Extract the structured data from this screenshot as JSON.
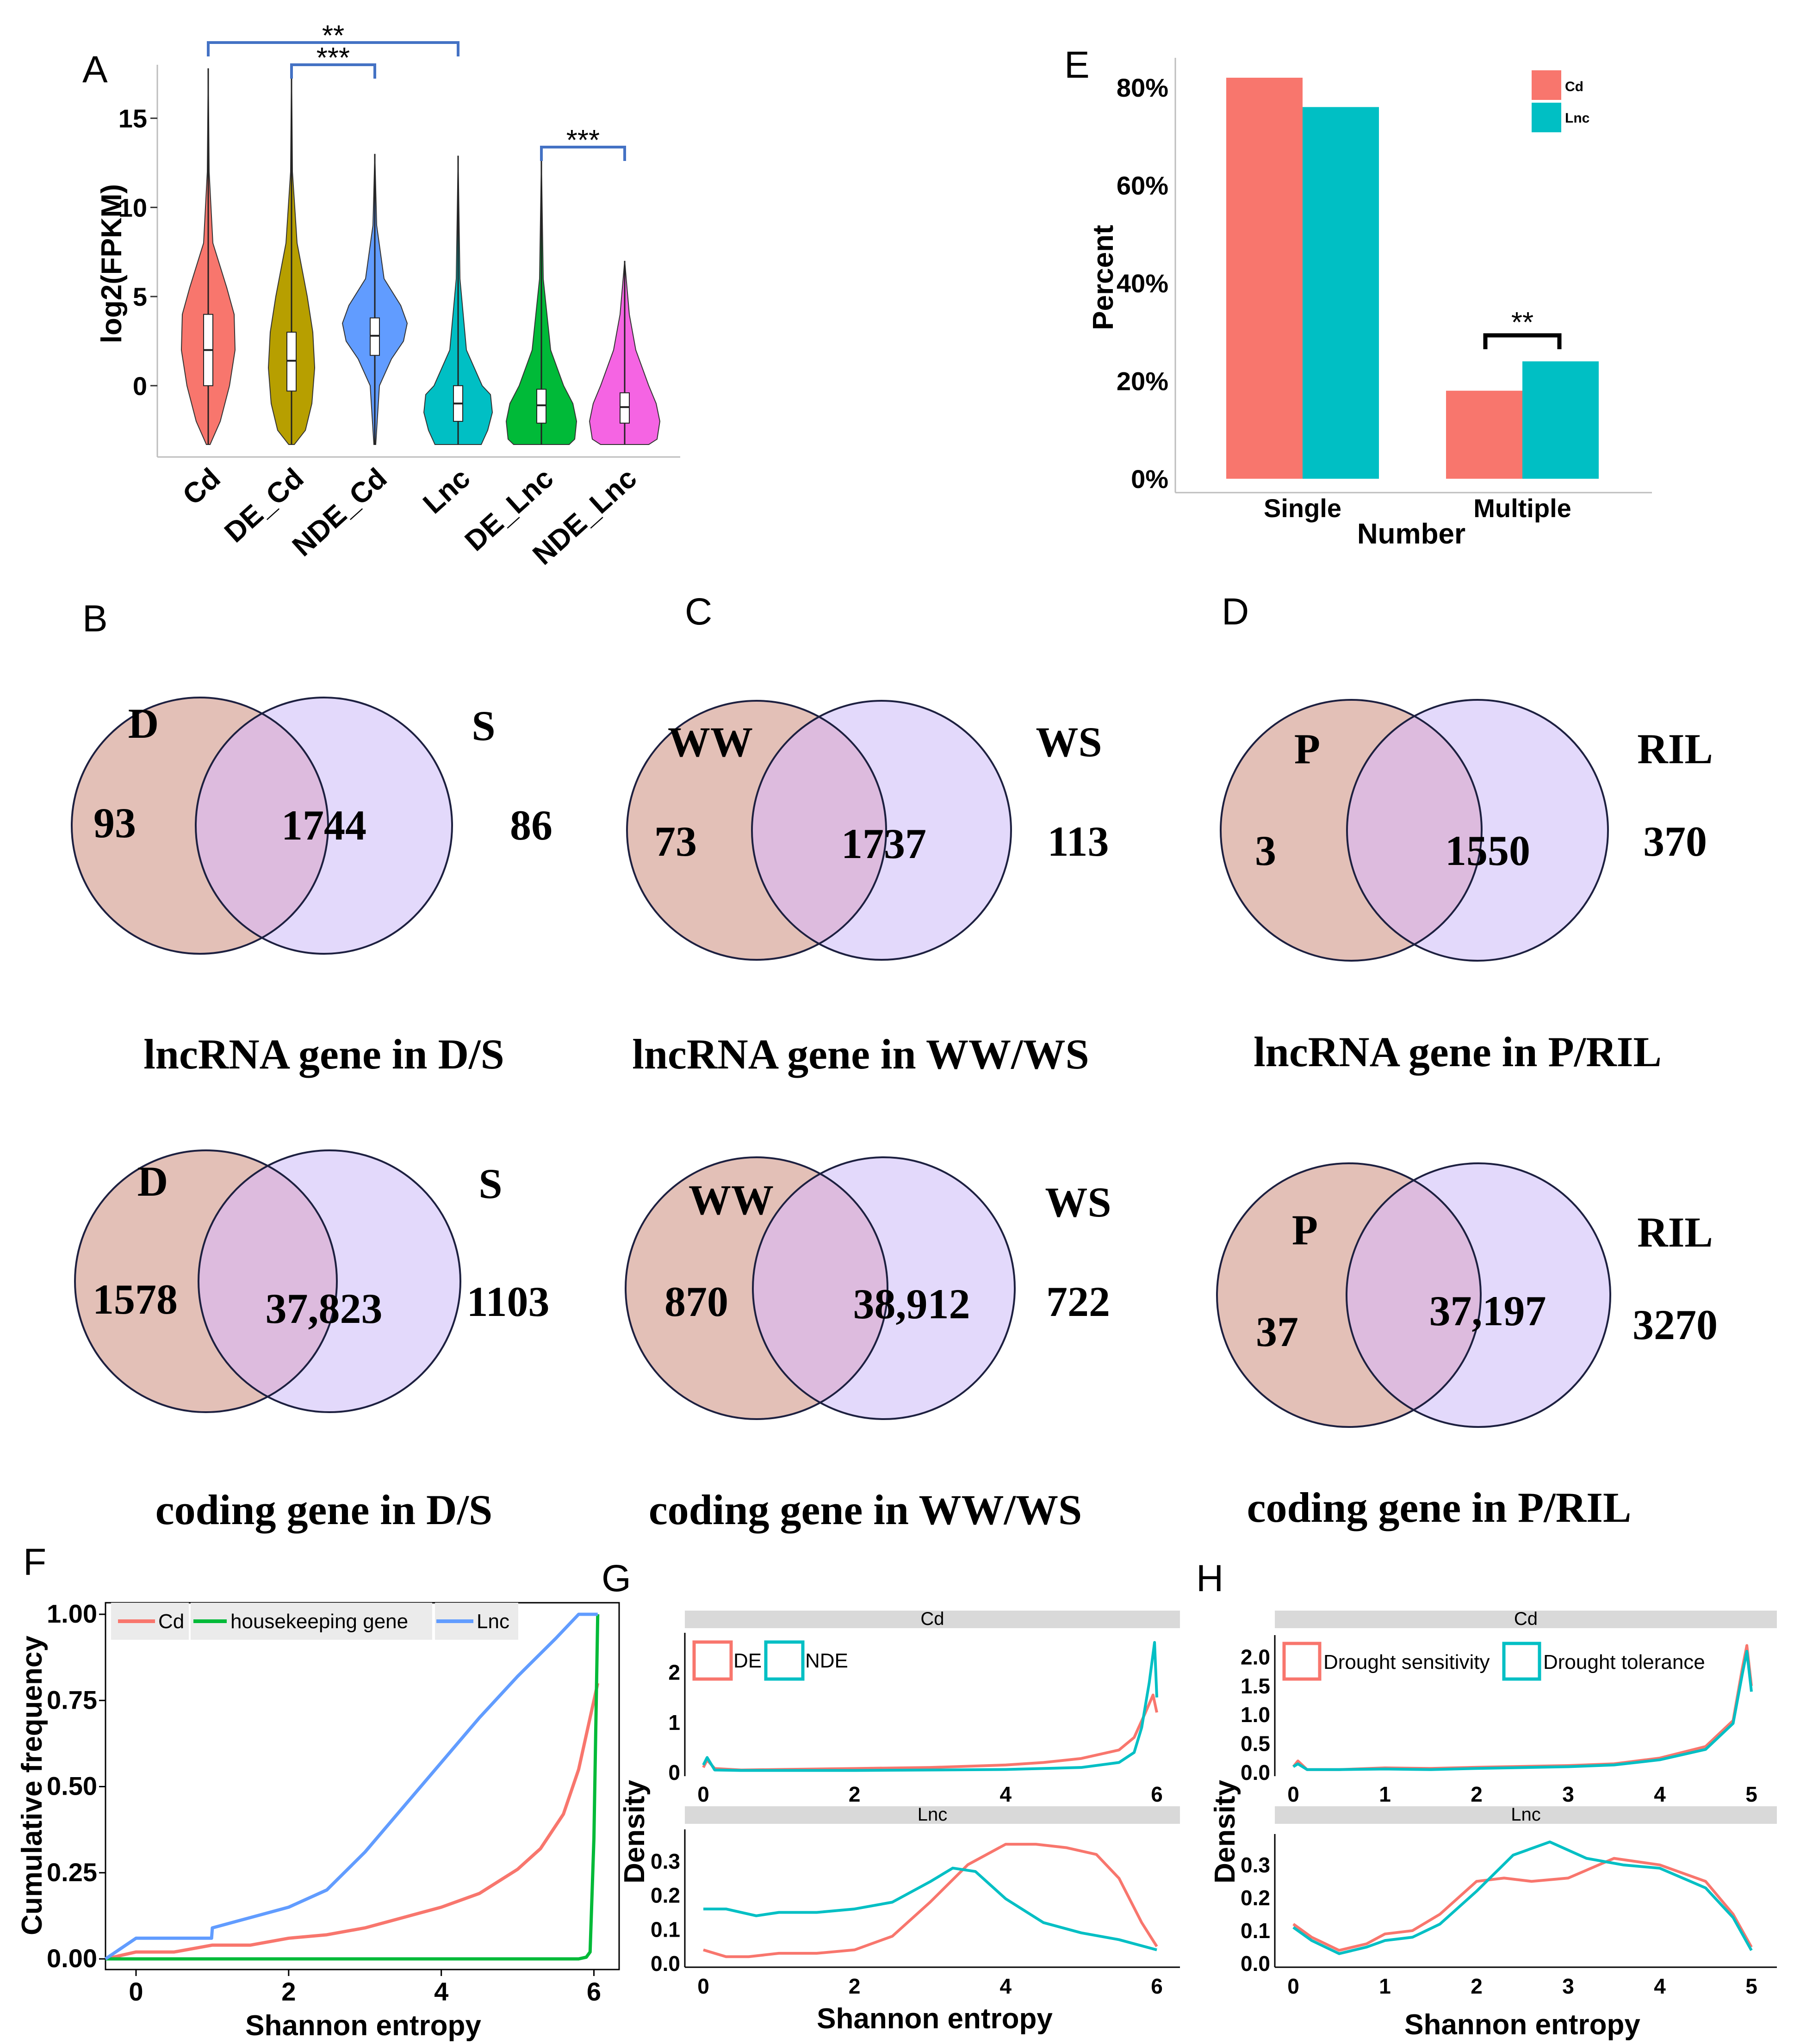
{
  "colors": {
    "red": "#F8766D",
    "olive": "#B79F00",
    "blue": "#619CFF",
    "cyan": "#00BFC4",
    "green": "#00BA38",
    "magenta": "#F564E3",
    "venn_left": "#E3C0B7",
    "venn_right": "#E3D9FB",
    "venn_mid": "#DDBBDE",
    "bracket": "#4472C4"
  },
  "panels": {
    "A": {
      "label": "A",
      "chart_data": {
        "type": "violin",
        "ylabel": "log2(FPKM)",
        "ylim": [
          -4,
          18
        ],
        "yticks": [
          "15",
          "10",
          "5",
          "0"
        ],
        "yticks_values": [
          15,
          10,
          5,
          0
        ],
        "categories": [
          "Cd",
          "DE_Cd",
          "NDE_Cd",
          "Lnc",
          "DE_Lnc",
          "NDE_Lnc"
        ],
        "medians": [
          2,
          1.4,
          2.8,
          -1,
          -1.1,
          -1.2
        ],
        "q1": [
          0,
          -0.3,
          1.7,
          -2,
          -2.1,
          -2.1
        ],
        "q3": [
          4,
          3,
          3.8,
          0,
          -0.2,
          -0.4
        ],
        "mins": [
          -3.3,
          -3.3,
          -3.3,
          -3.3,
          -3.3,
          -3.3
        ],
        "maxs": [
          17.8,
          18,
          13,
          12.9,
          12.7,
          7
        ],
        "significance": [
          {
            "from": "Cd",
            "to": "Lnc",
            "label": "**"
          },
          {
            "from": "DE_Cd",
            "to": "NDE_Cd",
            "label": "***"
          },
          {
            "from": "DE_Lnc",
            "to": "NDE_Lnc",
            "label": "***"
          }
        ]
      }
    },
    "E": {
      "label": "E",
      "chart_data": {
        "type": "bar",
        "xlabel": "Number",
        "ylabel": "Percent",
        "categories": [
          "Single",
          "Multiple"
        ],
        "series": [
          {
            "name": "Cd",
            "values": [
              82,
              18
            ]
          },
          {
            "name": "Lnc",
            "values": [
              76,
              24
            ]
          }
        ],
        "ylim": [
          0,
          82
        ],
        "yticks": [
          "0%",
          "20%",
          "40%",
          "60%",
          "80%"
        ],
        "yticks_values": [
          0,
          20,
          40,
          60,
          80
        ],
        "significance": [
          {
            "category": "Multiple",
            "label": "**"
          }
        ]
      }
    },
    "B": {
      "label": "B",
      "left_name": "D",
      "right_name": "S",
      "rows": [
        {
          "left": "93",
          "mid": "1744",
          "right": "86",
          "title": "lncRNA gene in D/S"
        },
        {
          "left": "1578",
          "mid": "37,823",
          "right": "1103",
          "title": "coding gene in D/S"
        }
      ]
    },
    "C": {
      "label": "C",
      "left_name": "WW",
      "right_name": "WS",
      "rows": [
        {
          "left": "73",
          "mid": "1737",
          "right": "113",
          "title": "lncRNA gene in WW/WS"
        },
        {
          "left": "870",
          "mid": "38,912",
          "right": "722",
          "title": "coding gene in WW/WS"
        }
      ]
    },
    "D": {
      "label": "D",
      "left_name": "P",
      "right_name": "RIL",
      "rows": [
        {
          "left": "3",
          "mid": "1550",
          "right": "370",
          "title": "lncRNA gene in P/RIL"
        },
        {
          "left": "37",
          "mid": "37,197",
          "right": "3270",
          "title": "coding gene in P/RIL"
        }
      ]
    },
    "F": {
      "label": "F",
      "chart_data": {
        "type": "line",
        "xlabel": "Shannon entropy",
        "ylabel": "Cumulative frequency",
        "xlim": [
          -0.4,
          6.1
        ],
        "ylim": [
          -0.02,
          1.02
        ],
        "xticks": [
          "0",
          "2",
          "4",
          "6"
        ],
        "xticks_values": [
          0,
          2,
          4,
          6
        ],
        "yticks": [
          "0.00",
          "0.25",
          "0.50",
          "0.75",
          "1.00"
        ],
        "yticks_values": [
          0,
          0.25,
          0.5,
          0.75,
          1
        ],
        "legend": [
          "Cd",
          "housekeeping gene",
          "Lnc"
        ],
        "series": [
          {
            "name": "Cd",
            "x": [
              -0.4,
              0,
              0.5,
              1,
              1.5,
              2,
              2.5,
              3,
              3.5,
              4,
              4.5,
              5,
              5.3,
              5.6,
              5.8,
              5.95,
              6.05
            ],
            "y": [
              0,
              0.02,
              0.02,
              0.04,
              0.04,
              0.06,
              0.07,
              0.09,
              0.12,
              0.15,
              0.19,
              0.26,
              0.32,
              0.42,
              0.55,
              0.7,
              0.8
            ]
          },
          {
            "name": "housekeeping gene",
            "x": [
              -0.4,
              5.8,
              5.9,
              5.95,
              6.0,
              6.05
            ],
            "y": [
              0,
              0.0,
              0.005,
              0.02,
              0.35,
              1.0
            ]
          },
          {
            "name": "Lnc",
            "x": [
              -0.4,
              0,
              0.5,
              0.99,
              1.0,
              1.5,
              2,
              2.5,
              3,
              3.5,
              4,
              4.5,
              5,
              5.5,
              5.8,
              6.05
            ],
            "y": [
              0,
              0.06,
              0.06,
              0.06,
              0.09,
              0.12,
              0.15,
              0.2,
              0.31,
              0.44,
              0.57,
              0.7,
              0.82,
              0.93,
              1.0,
              1.0
            ]
          }
        ]
      }
    },
    "G": {
      "label": "G",
      "chart_data": {
        "type": "density",
        "xlabel": "Shannon entropy",
        "ylabel": "Density",
        "legend": [
          "DE",
          "NDE"
        ],
        "xlim": [
          0,
          6
        ],
        "xticks": [
          "0",
          "2",
          "4",
          "6"
        ],
        "xticks_values": [
          0,
          2,
          4,
          6
        ],
        "facets": [
          {
            "name": "Cd",
            "ylim": [
              0,
              2.7
            ],
            "yticks": [
              "0",
              "1",
              "2"
            ],
            "yticks_values": [
              0,
              1,
              2
            ],
            "series": [
              {
                "name": "DE",
                "x": [
                  0,
                  0.05,
                  0.15,
                  0.5,
                  1,
                  2,
                  3,
                  4,
                  4.5,
                  5,
                  5.5,
                  5.7,
                  5.85,
                  5.95,
                  6
                ],
                "y": [
                  0.1,
                  0.25,
                  0.08,
                  0.05,
                  0.06,
                  0.08,
                  0.1,
                  0.15,
                  0.2,
                  0.28,
                  0.45,
                  0.7,
                  1.2,
                  1.55,
                  1.2
                ]
              },
              {
                "name": "NDE",
                "x": [
                  0,
                  0.05,
                  0.15,
                  0.5,
                  1,
                  2,
                  3,
                  4,
                  5,
                  5.5,
                  5.7,
                  5.8,
                  5.9,
                  5.97,
                  6
                ],
                "y": [
                  0.15,
                  0.3,
                  0.05,
                  0.04,
                  0.04,
                  0.04,
                  0.05,
                  0.06,
                  0.1,
                  0.2,
                  0.4,
                  0.9,
                  1.8,
                  2.6,
                  1.5
                ]
              }
            ]
          },
          {
            "name": "Lnc",
            "ylim": [
              0,
              0.38
            ],
            "yticks": [
              "0.0",
              "0.1",
              "0.2",
              "0.3"
            ],
            "yticks_values": [
              0,
              0.1,
              0.2,
              0.3
            ],
            "series": [
              {
                "name": "DE",
                "x": [
                  0,
                  0.3,
                  0.6,
                  1,
                  1.5,
                  2,
                  2.5,
                  3,
                  3.5,
                  4,
                  4.4,
                  4.8,
                  5.2,
                  5.5,
                  5.8,
                  6
                ],
                "y": [
                  0.04,
                  0.02,
                  0.02,
                  0.03,
                  0.03,
                  0.04,
                  0.08,
                  0.18,
                  0.29,
                  0.35,
                  0.35,
                  0.34,
                  0.32,
                  0.25,
                  0.12,
                  0.05
                ]
              },
              {
                "name": "NDE",
                "x": [
                  0,
                  0.3,
                  0.7,
                  1,
                  1.5,
                  2,
                  2.5,
                  3,
                  3.3,
                  3.6,
                  4,
                  4.5,
                  5,
                  5.5,
                  6
                ],
                "y": [
                  0.16,
                  0.16,
                  0.14,
                  0.15,
                  0.15,
                  0.16,
                  0.18,
                  0.24,
                  0.28,
                  0.27,
                  0.19,
                  0.12,
                  0.09,
                  0.07,
                  0.04
                ]
              }
            ]
          }
        ]
      }
    },
    "H": {
      "label": "H",
      "chart_data": {
        "type": "density",
        "xlabel": "Shannon entropy",
        "ylabel": "Density",
        "legend": [
          "Drought sensitivity",
          "Drought tolerance"
        ],
        "xlim": [
          0,
          5
        ],
        "xticks": [
          "0",
          "1",
          "2",
          "3",
          "4",
          "5"
        ],
        "xticks_values": [
          0,
          1,
          2,
          3,
          4,
          5
        ],
        "facets": [
          {
            "name": "Cd",
            "ylim": [
              0,
              2.3
            ],
            "yticks": [
              "0.0",
              "0.5",
              "1.0",
              "1.5",
              "2.0"
            ],
            "yticks_values": [
              0,
              0.5,
              1,
              1.5,
              2
            ],
            "series": [
              {
                "name": "Drought sensitivity",
                "x": [
                  0,
                  0.05,
                  0.15,
                  0.5,
                  1,
                  1.5,
                  2,
                  3,
                  3.5,
                  4,
                  4.5,
                  4.8,
                  4.9,
                  4.95,
                  5
                ],
                "y": [
                  0.1,
                  0.2,
                  0.05,
                  0.05,
                  0.08,
                  0.07,
                  0.09,
                  0.12,
                  0.15,
                  0.25,
                  0.45,
                  0.9,
                  1.8,
                  2.2,
                  1.5
                ]
              },
              {
                "name": "Drought tolerance",
                "x": [
                  0,
                  0.05,
                  0.15,
                  0.5,
                  1,
                  1.5,
                  2,
                  3,
                  3.5,
                  4,
                  4.5,
                  4.8,
                  4.9,
                  4.95,
                  5
                ],
                "y": [
                  0.1,
                  0.15,
                  0.05,
                  0.05,
                  0.06,
                  0.05,
                  0.07,
                  0.1,
                  0.13,
                  0.22,
                  0.4,
                  0.85,
                  1.7,
                  2.1,
                  1.4
                ]
              }
            ]
          },
          {
            "name": "Lnc",
            "ylim": [
              0,
              0.38
            ],
            "yticks": [
              "0.0",
              "0.1",
              "0.2",
              "0.3"
            ],
            "yticks_values": [
              0,
              0.1,
              0.2,
              0.3
            ],
            "series": [
              {
                "name": "Drought sensitivity",
                "x": [
                  0,
                  0.2,
                  0.5,
                  0.8,
                  1,
                  1.3,
                  1.6,
                  2,
                  2.3,
                  2.6,
                  3,
                  3.5,
                  4,
                  4.5,
                  4.8,
                  5
                ],
                "y": [
                  0.12,
                  0.08,
                  0.04,
                  0.06,
                  0.09,
                  0.1,
                  0.15,
                  0.25,
                  0.26,
                  0.25,
                  0.26,
                  0.32,
                  0.3,
                  0.25,
                  0.15,
                  0.05
                ]
              },
              {
                "name": "Drought tolerance",
                "x": [
                  0,
                  0.2,
                  0.5,
                  0.8,
                  1,
                  1.3,
                  1.6,
                  2,
                  2.4,
                  2.8,
                  3.2,
                  3.6,
                  4,
                  4.5,
                  4.8,
                  5
                ],
                "y": [
                  0.11,
                  0.07,
                  0.03,
                  0.05,
                  0.07,
                  0.08,
                  0.12,
                  0.22,
                  0.33,
                  0.37,
                  0.32,
                  0.3,
                  0.29,
                  0.23,
                  0.14,
                  0.04
                ]
              }
            ]
          }
        ]
      }
    }
  }
}
